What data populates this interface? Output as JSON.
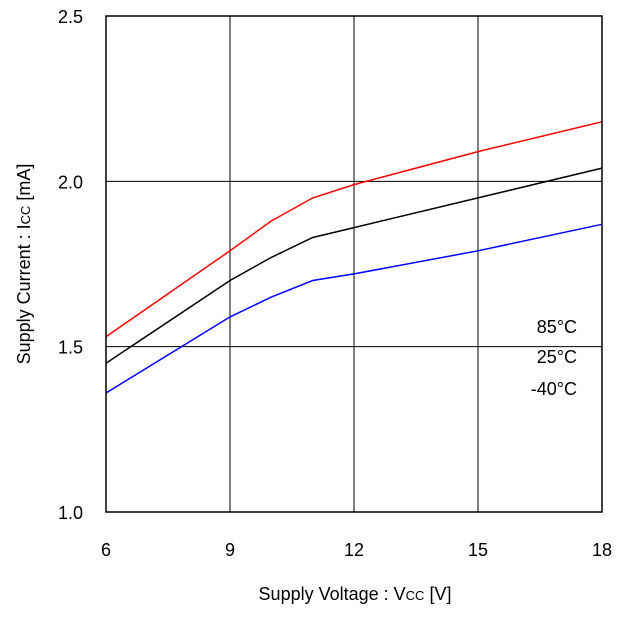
{
  "chart_data": {
    "type": "line",
    "title": "",
    "xlabel": {
      "main": "Supply Voltage : V",
      "subscript": "CC",
      "unit": " [V]"
    },
    "ylabel": {
      "main": "Supply Current : I",
      "subscript": "CC",
      "unit": " [mA]"
    },
    "xlim": [
      6,
      18
    ],
    "ylim": [
      1.0,
      2.5
    ],
    "x_ticks": [
      6,
      9,
      12,
      15,
      18
    ],
    "x_tick_labels": [
      "6",
      "9",
      "12",
      "15",
      "18"
    ],
    "y_ticks": [
      1.0,
      1.5,
      2.0,
      2.5
    ],
    "y_tick_labels": [
      "1.0",
      "1.5",
      "2.0",
      "2.5"
    ],
    "grid": true,
    "legend_position": "right",
    "series": [
      {
        "name": "85°C",
        "color": "#ff0000",
        "x": [
          6,
          9,
          10,
          11,
          12,
          15,
          18
        ],
        "y": [
          1.53,
          1.79,
          1.88,
          1.95,
          1.99,
          2.09,
          2.18
        ]
      },
      {
        "name": "25°C",
        "color": "#000000",
        "x": [
          6,
          9,
          10,
          11,
          12,
          15,
          18
        ],
        "y": [
          1.45,
          1.7,
          1.77,
          1.83,
          1.86,
          1.95,
          2.04
        ]
      },
      {
        "name": "-40°C",
        "color": "#0000ff",
        "x": [
          6,
          9,
          10,
          11,
          12,
          15,
          18
        ],
        "y": [
          1.36,
          1.59,
          1.65,
          1.7,
          1.72,
          1.79,
          1.87
        ]
      }
    ]
  }
}
